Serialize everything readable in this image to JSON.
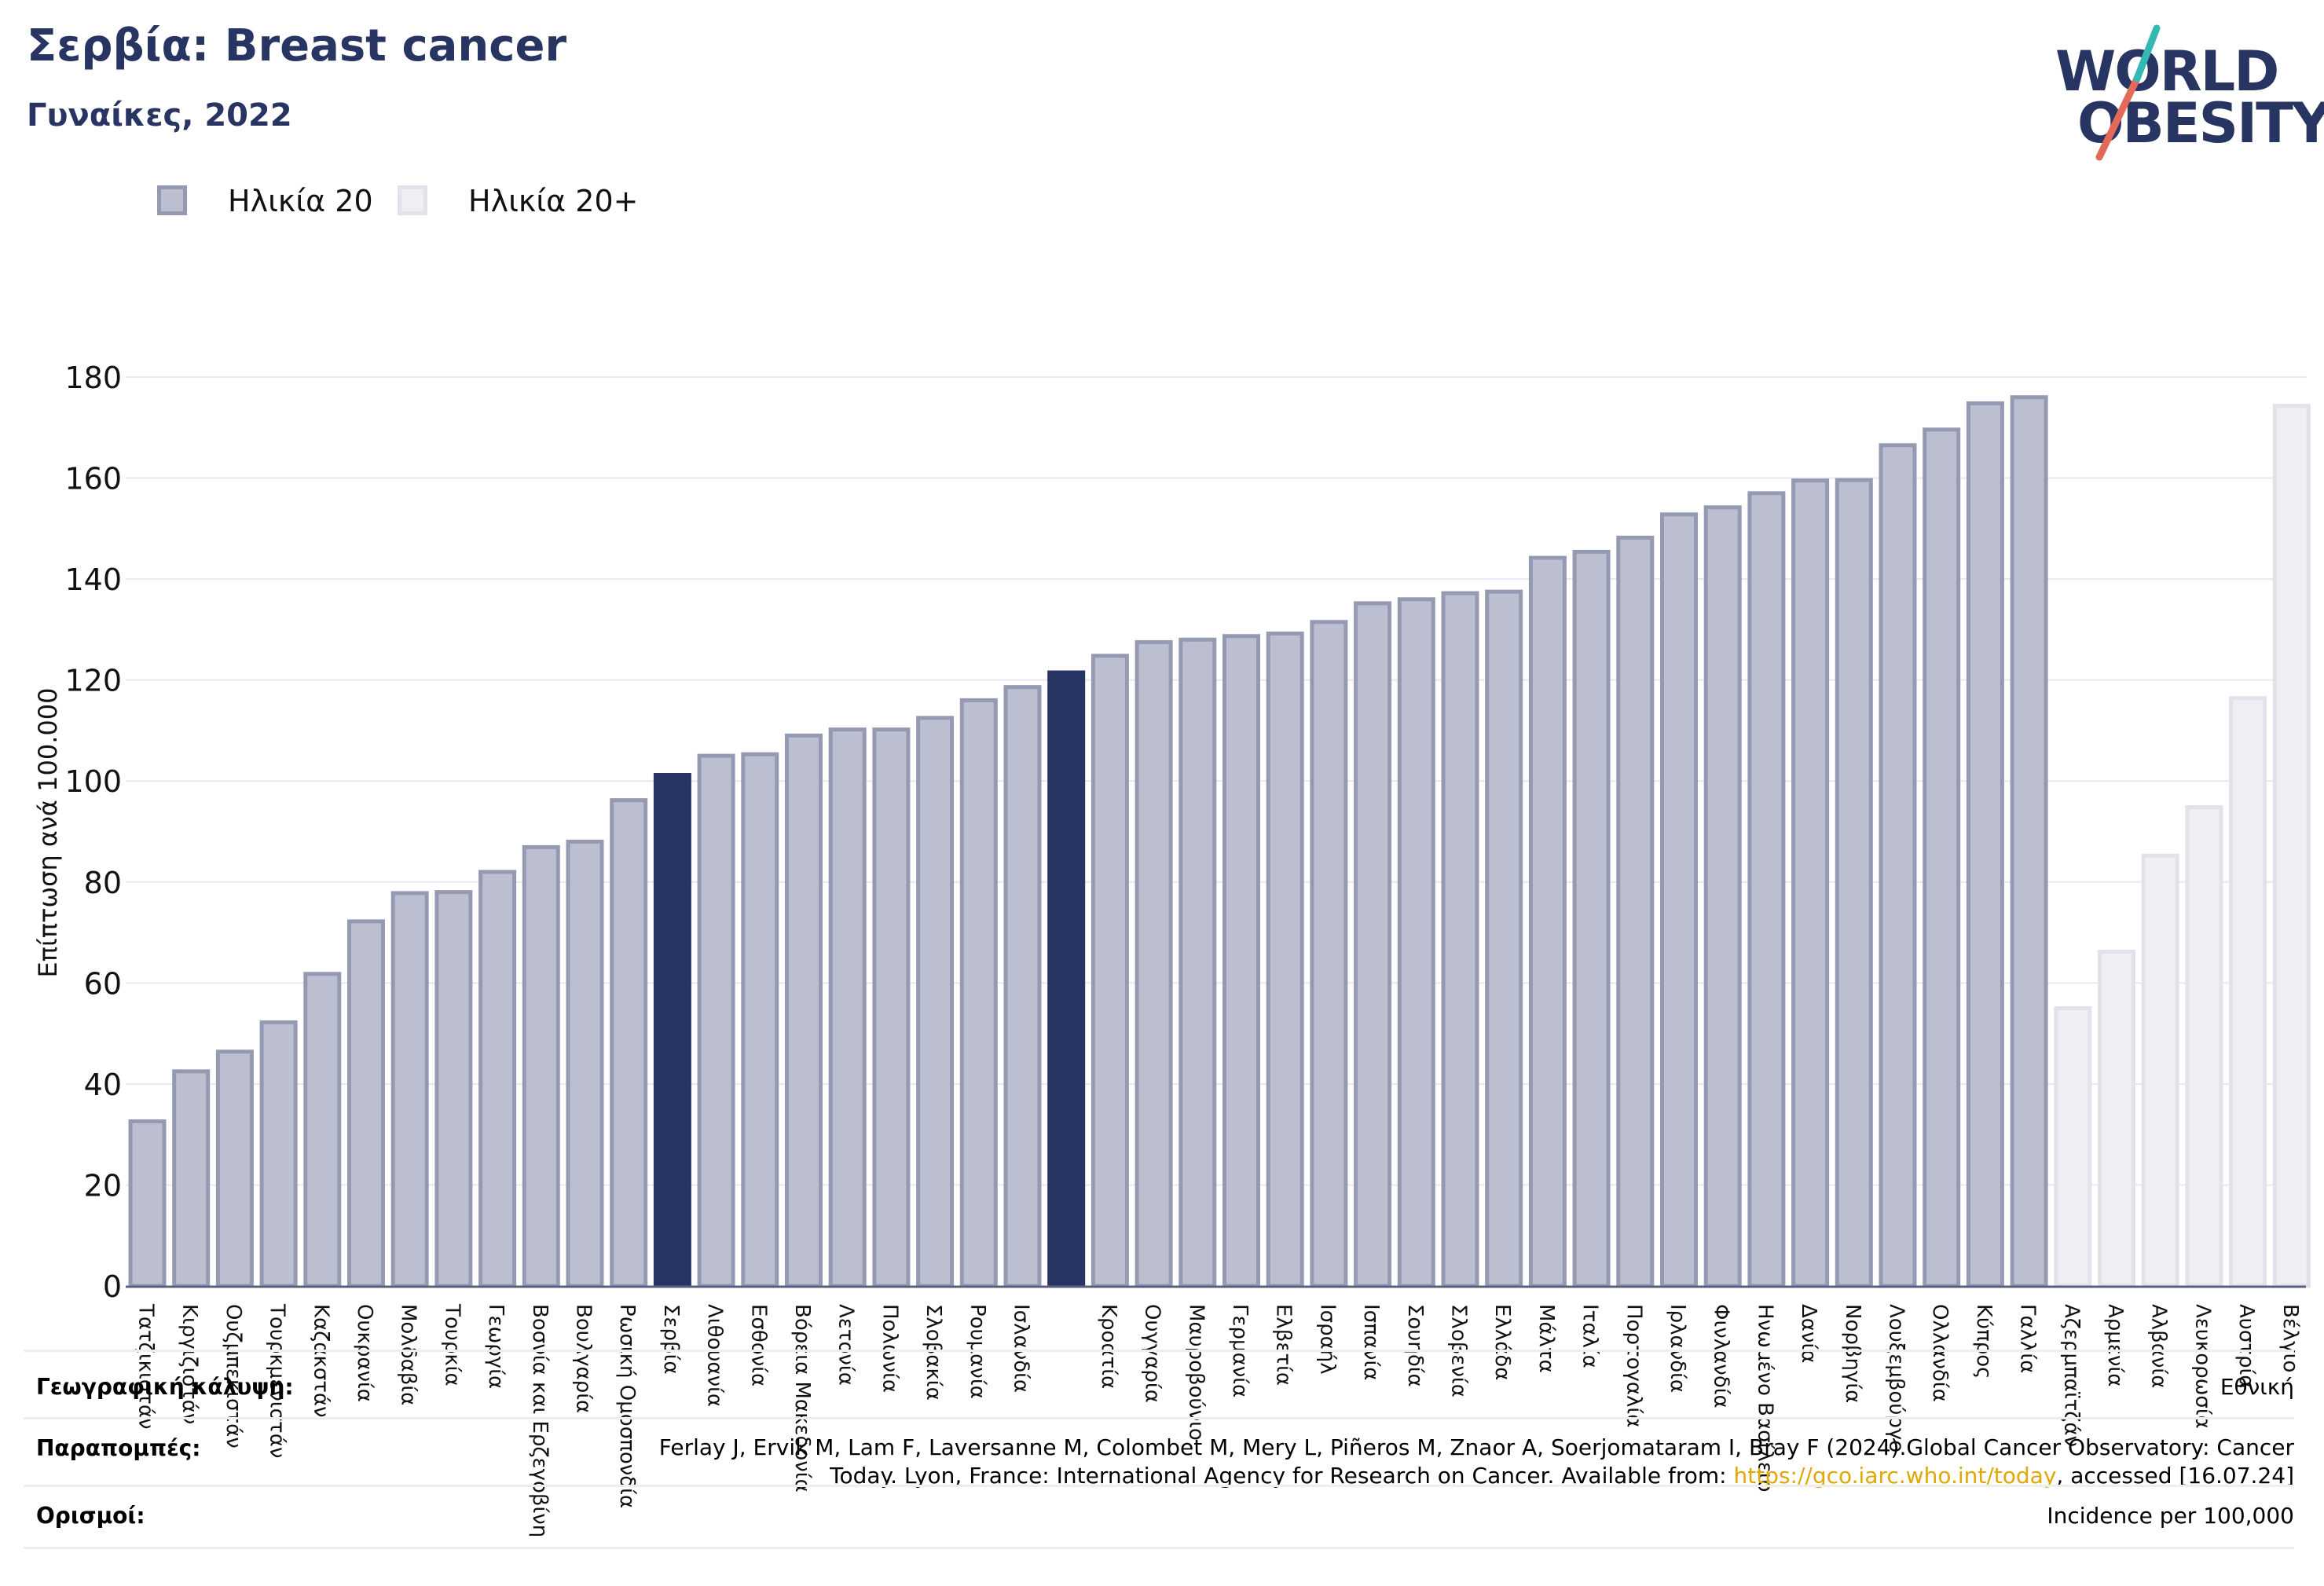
{
  "title": "Σερβία: Breast cancer",
  "subtitle": "Γυναίκες, 2022",
  "logo": {
    "line1": "WORLD",
    "line2": "OBESITY"
  },
  "colors": {
    "highlight": "#283562",
    "bar_fill": "#bcbfcf",
    "bar_stroke": "#9599b2",
    "bar_fill_light": "#eeeff3",
    "bar_stroke_light": "#e2e3ea",
    "axis": "#5a607e",
    "grid": "#e8e8ee"
  },
  "legend": {
    "items": [
      {
        "label": "Ηλικία 20",
        "fill": "#bcbfcf",
        "stroke": "#9599b2"
      },
      {
        "label": "Ηλικία 20+",
        "fill": "#eeeff3",
        "stroke": "#e2e3ea"
      }
    ]
  },
  "chart_data": {
    "type": "bar",
    "title": "Σερβία: Breast cancer",
    "subtitle": "Γυναίκες, 2022",
    "ylabel": "Επίπτωση ανά 100.000",
    "xlabel": "",
    "ylim": [
      0,
      180
    ],
    "yticks": [
      0,
      20,
      40,
      60,
      80,
      100,
      120,
      140,
      160,
      180
    ],
    "grid": true,
    "legend_position": "top-left",
    "categories": [
      "Τατζικιστάν",
      "Κιργιζιστάν",
      "Ουζμπεκιστάν",
      "Τουρκμενιστάν",
      "Καζακστάν",
      "Ουκρανία",
      "Μολδαβία",
      "Τουρκία",
      "Γεωργία",
      "Βοσνία και Ερζεγοβίνη",
      "Βουλγαρία",
      "Ρωσική Ομοσπονδία",
      "Σερβία",
      "Λιθουανία",
      "Εσθονία",
      "Βόρεια Μακεδονία",
      "Λετονία",
      "Πολωνία",
      "Σλοβακία",
      "Ρουμανία",
      "Ισλανδία",
      "",
      "Κροατία",
      "Ουγγαρία",
      "Μαυροβούνιο",
      "Γερμανία",
      "Ελβετία",
      "Ισραήλ",
      "Ισπανία",
      "Σουηδία",
      "Σλοβενία",
      "Ελλάδα",
      "Μάλτα",
      "Ιταλία",
      "Πορτογαλία",
      "Ιρλανδία",
      "Φινλανδία",
      "Ηνωμένο Βασίλειο",
      "Δανία",
      "Νορβηγία",
      "Λουξεμβούργο",
      "Ολλανδία",
      "Κύπρος",
      "Γαλλία",
      "Αζερμπαϊτζάν",
      "Αρμενία",
      "Αλβανία",
      "Λευκορωσία",
      "Αυστρία",
      "Βέλγιο"
    ],
    "values": [
      32.6,
      42.5,
      46.4,
      52.2,
      61.8,
      72.2,
      77.8,
      78.0,
      82.0,
      86.9,
      88.0,
      96.2,
      101.2,
      105.0,
      105.3,
      109.0,
      110.2,
      110.2,
      112.5,
      116.0,
      118.6,
      121.5,
      124.8,
      127.5,
      128.0,
      128.7,
      129.2,
      131.5,
      135.2,
      136.0,
      137.2,
      137.5,
      144.2,
      145.4,
      148.2,
      152.8,
      154.2,
      157.0,
      159.5,
      159.6,
      166.5,
      169.6,
      174.8,
      176.0,
      55.0,
      66.2,
      85.2,
      94.8,
      116.4,
      174.3
    ],
    "series_group": [
      "Ηλικία 20",
      "Ηλικία 20",
      "Ηλικία 20",
      "Ηλικία 20",
      "Ηλικία 20",
      "Ηλικία 20",
      "Ηλικία 20",
      "Ηλικία 20",
      "Ηλικία 20",
      "Ηλικία 20",
      "Ηλικία 20",
      "Ηλικία 20",
      "Ηλικία 20",
      "Ηλικία 20",
      "Ηλικία 20",
      "Ηλικία 20",
      "Ηλικία 20",
      "Ηλικία 20",
      "Ηλικία 20",
      "Ηλικία 20",
      "Ηλικία 20",
      "Ηλικία 20",
      "Ηλικία 20",
      "Ηλικία 20",
      "Ηλικία 20",
      "Ηλικία 20",
      "Ηλικία 20",
      "Ηλικία 20",
      "Ηλικία 20",
      "Ηλικία 20",
      "Ηλικία 20",
      "Ηλικία 20",
      "Ηλικία 20",
      "Ηλικία 20",
      "Ηλικία 20",
      "Ηλικία 20",
      "Ηλικία 20",
      "Ηλικία 20",
      "Ηλικία 20",
      "Ηλικία 20",
      "Ηλικία 20",
      "Ηλικία 20",
      "Ηλικία 20",
      "Ηλικία 20",
      "Ηλικία 20+",
      "Ηλικία 20+",
      "Ηλικία 20+",
      "Ηλικία 20+",
      "Ηλικία 20+",
      "Ηλικία 20+"
    ],
    "highlighted": [
      12,
      21
    ]
  },
  "footer": {
    "coverage_label": "Γεωγραφική κάλυψη:",
    "coverage_value": "Εθνική",
    "references_label": "Παραπομπές:",
    "references_text": "Ferlay J, Ervik M, Lam F, Laversanne M, Colombet M, Mery L, Piñeros M, Znaor A, Soerjomataram I, Bray F (2024).Global Cancer Observatory: Cancer Today. Lyon, France: International Agency for Research on Cancer. Available from: ",
    "references_link": "https://gco.iarc.who.int/today",
    "references_tail": ", accessed [16.07.24]",
    "definitions_label": "Ορισμοί:",
    "definitions_value": "Incidence per 100,000"
  }
}
